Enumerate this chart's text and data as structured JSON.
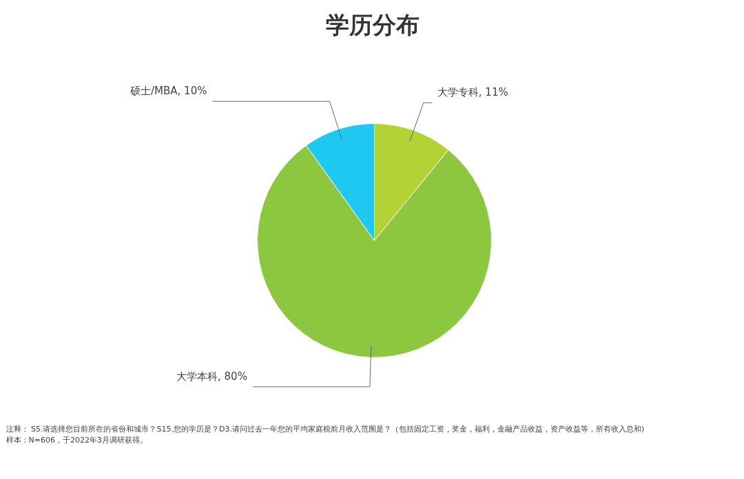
{
  "chart_data": {
    "type": "pie",
    "title": "学历分布",
    "categories": [
      "大学专科",
      "大学本科",
      "硕士/MBA"
    ],
    "values": [
      11,
      80,
      10
    ],
    "value_labels": [
      "11%",
      "80%",
      "10%"
    ],
    "colors": [
      "#b3d233",
      "#8dc63f",
      "#1fc8f0"
    ],
    "annotations": [
      "注释： S5.请选择您目前所在的省份和城市？S15.您的学历是？D3.请问过去一年您的平均家庭税前月收入范围是？（包括固定工资，奖金，福利，金融产品收益，资产收益等，所有收入总和)",
      "样本：N=606，于2022年3月调研获得。"
    ]
  }
}
